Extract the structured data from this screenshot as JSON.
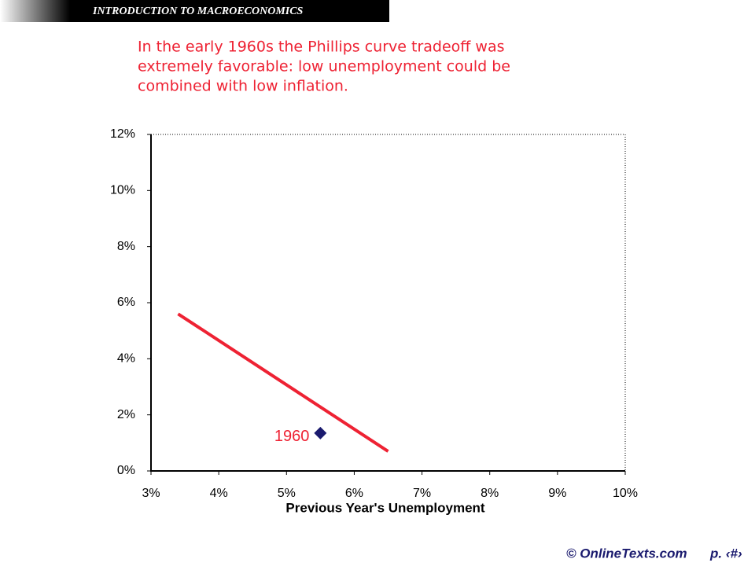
{
  "slide": {
    "header": "INTRODUCTION TO MACROECONOMICS",
    "text": [
      "In the early 1960s the Phillips curve tradeoff was",
      "extremely favorable: low unemployment could be",
      "combined with low inflation."
    ],
    "footer": {
      "source": "© OnlineTexts.com",
      "page": "p. ‹#›"
    }
  },
  "chart_data": {
    "type": "scatter",
    "x_label": "Previous Year's Unemployment",
    "xlim": [
      3,
      10
    ],
    "ylim": [
      0,
      12
    ],
    "xticks": [
      {
        "value": 3,
        "label": "3%"
      },
      {
        "value": 4,
        "label": "4%"
      },
      {
        "value": 5,
        "label": "5%"
      },
      {
        "value": 6,
        "label": "6%"
      },
      {
        "value": 7,
        "label": "7%"
      },
      {
        "value": 8,
        "label": "8%"
      },
      {
        "value": 9,
        "label": "9%"
      },
      {
        "value": 10,
        "label": "10%"
      }
    ],
    "yticks": [
      {
        "value": 0,
        "label": "0%"
      },
      {
        "value": 2,
        "label": "2%"
      },
      {
        "value": 4,
        "label": "4%"
      },
      {
        "value": 6,
        "label": "6%"
      },
      {
        "value": 8,
        "label": "8%"
      },
      {
        "value": 10,
        "label": "10%"
      },
      {
        "value": 12,
        "label": "12%"
      }
    ],
    "line": {
      "color": "#ee2233",
      "x": [
        3.4,
        6.5
      ],
      "values": [
        5.6,
        0.7
      ]
    },
    "points": {
      "color": "#1a1a6e",
      "label_color": "#ee2233",
      "x": [
        5.5
      ],
      "values": [
        1.35
      ],
      "labels": [
        "1960"
      ]
    }
  }
}
